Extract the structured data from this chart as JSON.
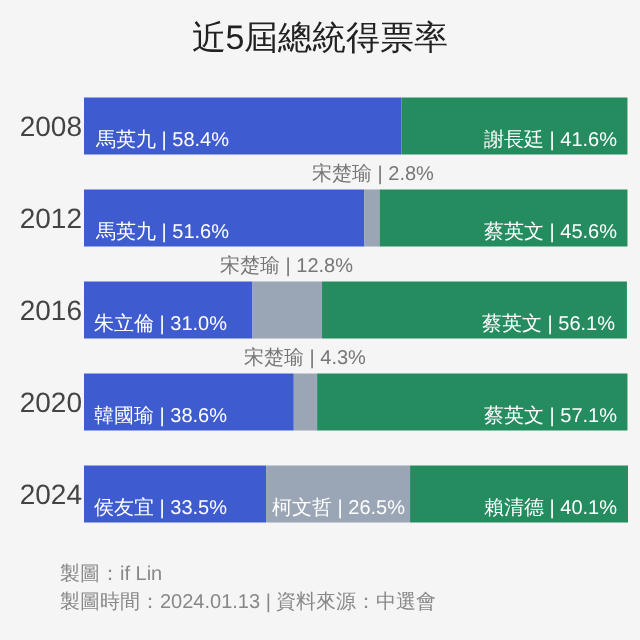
{
  "chart_data": {
    "type": "bar",
    "orientation": "horizontal",
    "stacked": true,
    "title": "近5屆總統得票率",
    "categories": [
      "2008",
      "2012",
      "2016",
      "2020",
      "2024"
    ],
    "series": [
      {
        "color": "#3f5bd0",
        "values": [
          58.4,
          51.6,
          31.0,
          38.6,
          33.5
        ],
        "value_labels": [
          "馬英九 | 58.4%",
          "馬英九 | 51.6%",
          "朱立倫 | 31.0%",
          "韓國瑜 | 38.6%",
          "侯友宜 | 33.5%"
        ]
      },
      {
        "color": "#9aa6b6",
        "values": [
          null,
          2.8,
          12.8,
          4.3,
          26.5
        ],
        "value_labels": [
          null,
          "宋楚瑜 | 2.8%",
          "宋楚瑜 | 12.8%",
          "宋楚瑜 | 4.3%",
          "柯文哲 | 26.5%"
        ]
      },
      {
        "color": "#248c5f",
        "values": [
          41.6,
          45.6,
          56.1,
          57.1,
          40.1
        ],
        "value_labels": [
          "謝長廷 | 41.6%",
          "蔡英文 | 45.6%",
          "蔡英文 | 56.1%",
          "蔡英文 | 57.1%",
          "賴清德 | 40.1%"
        ]
      }
    ],
    "xlim": [
      0,
      100.1
    ],
    "tick_labels": "y",
    "grid": false,
    "annotations": [
      "製圖：if Lin",
      "製圖時間：2024.01.13 | 資料來源：中選會"
    ]
  }
}
